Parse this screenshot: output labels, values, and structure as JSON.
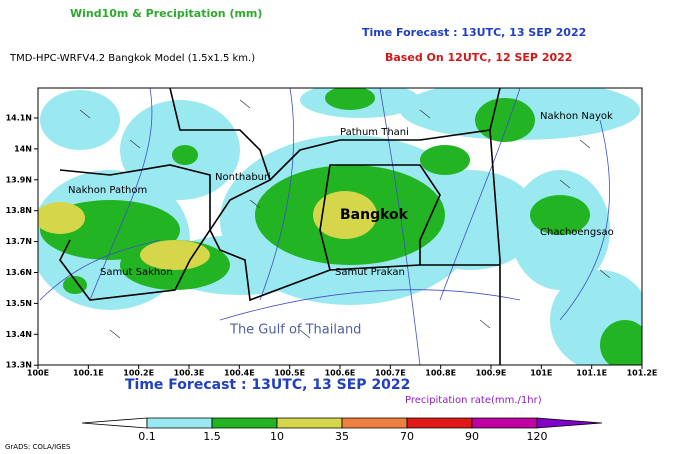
{
  "header": {
    "title": "Wind10m & Precipitation (mm)",
    "forecast": "Time Forecast : 13UTC, 13 SEP 2022",
    "model": "TMD-HPC-WRFV4.2 Bangkok Model (1.5x1.5 km.)",
    "based_on": "Based On 12UTC, 12 SEP 2022"
  },
  "map": {
    "lat_labels": [
      "14.1N",
      "14N",
      "13.9N",
      "13.8N",
      "13.7N",
      "13.6N",
      "13.5N",
      "13.4N",
      "13.3N"
    ],
    "lon_labels": [
      "100E",
      "100.1E",
      "100.2E",
      "100.3E",
      "100.4E",
      "100.5E",
      "100.6E",
      "100.7E",
      "100.8E",
      "100.9E",
      "101E",
      "101.1E",
      "101.2E"
    ],
    "places": [
      "Pathum Thani",
      "Nakhon Nayok",
      "Nonthaburi",
      "Nakhon Pathom",
      "Bangkok",
      "Chachoengsao",
      "Samut Sakhon",
      "Samut Prakan",
      "The Gulf of Thailand"
    ]
  },
  "footer": {
    "forecast": "Time Forecast : 13UTC, 13 SEP 2022",
    "legend_title": "Precipitation rate(mm./1hr)",
    "levels": [
      0.1,
      1.5,
      10,
      35,
      70,
      90,
      120
    ],
    "colors": [
      "#ffffff",
      "#9ae8f0",
      "#22b422",
      "#d6d64a",
      "#ee8040",
      "#e01818",
      "#c000a0",
      "#8000c8"
    ],
    "credit": "GrADS: COLA/IGES"
  }
}
